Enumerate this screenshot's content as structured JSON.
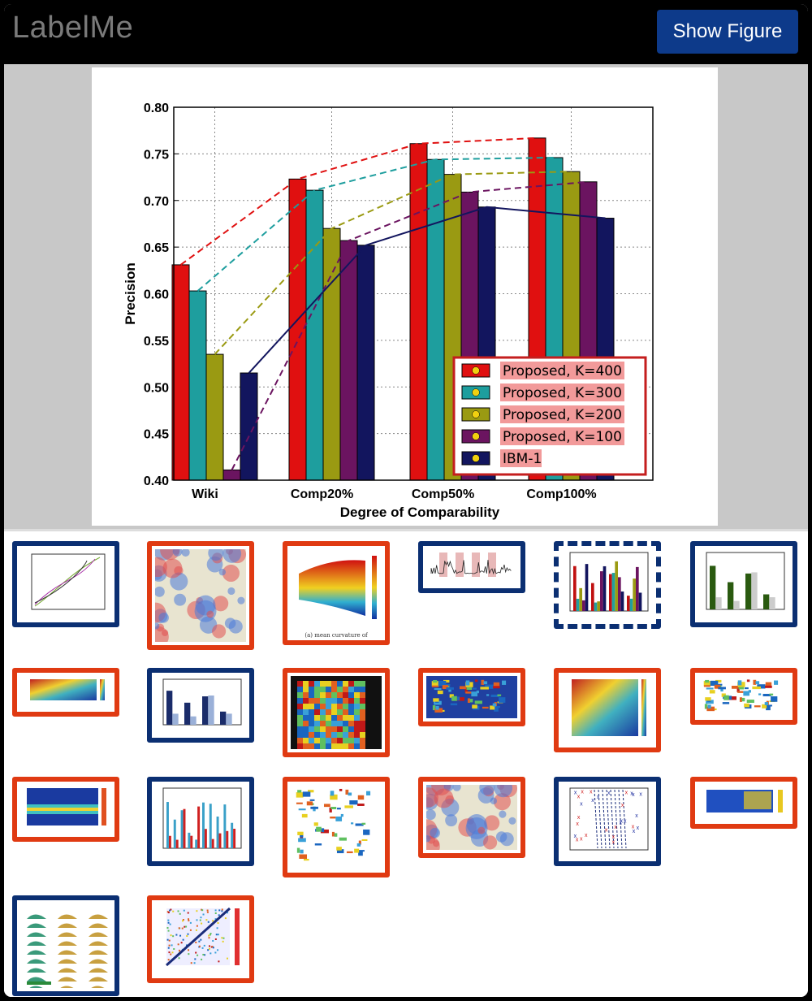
{
  "app": {
    "title": "LabelMe",
    "show_figure_label": "Show Figure"
  },
  "chart_data": {
    "type": "bar",
    "categories": [
      "Wiki",
      "Comp20%",
      "Comp50%",
      "Comp100%"
    ],
    "series": [
      {
        "name": "Proposed, K=400",
        "color": "#e01010",
        "values": [
          0.631,
          0.723,
          0.761,
          0.767
        ]
      },
      {
        "name": "Proposed, K=300",
        "color": "#1e9e9e",
        "values": [
          0.603,
          0.711,
          0.744,
          0.746
        ]
      },
      {
        "name": "Proposed, K=200",
        "color": "#9a9a12",
        "values": [
          0.535,
          0.67,
          0.728,
          0.731
        ]
      },
      {
        "name": "Proposed, K=100",
        "color": "#6b1460",
        "values": [
          0.411,
          0.657,
          0.709,
          0.72
        ]
      },
      {
        "name": "IBM-1",
        "color": "#12155e",
        "values": [
          0.515,
          0.652,
          0.693,
          0.681
        ]
      }
    ],
    "xlabel": "Degree of Comparability",
    "ylabel": "Precision",
    "ylim": [
      0.4,
      0.8
    ],
    "yticks": [
      "0.40",
      "0.45",
      "0.50",
      "0.55",
      "0.60",
      "0.65",
      "0.70",
      "0.75",
      "0.80"
    ],
    "grid": true,
    "legend_position": "lower-right"
  },
  "thumbnails": [
    {
      "label": "thumb-line-profiles",
      "kind": "lines",
      "style": "blue"
    },
    {
      "label": "thumb-antarctic-map",
      "kind": "map",
      "style": "red",
      "caption": ""
    },
    {
      "label": "thumb-mean-curvature-surface",
      "kind": "surface",
      "style": "red",
      "caption": "(a) mean curvature of"
    },
    {
      "label": "thumb-timeseries-bars",
      "kind": "timeseries",
      "style": "blue"
    },
    {
      "label": "thumb-current-figure",
      "kind": "bars",
      "style": "dashed"
    },
    {
      "label": "thumb-error-bars",
      "kind": "errbars",
      "style": "blue"
    },
    {
      "label": "thumb-ocean-section",
      "kind": "section",
      "style": "red"
    },
    {
      "label": "thumb-grouped-bars",
      "kind": "grouped",
      "style": "blue"
    },
    {
      "label": "thumb-heatmap-grid",
      "kind": "heatgrid",
      "style": "red"
    },
    {
      "label": "thumb-world-map",
      "kind": "worldmap",
      "style": "red"
    },
    {
      "label": "thumb-contour",
      "kind": "contour",
      "style": "red"
    },
    {
      "label": "thumb-scatter-map",
      "kind": "scattermap",
      "style": "red"
    },
    {
      "label": "thumb-spectrogram",
      "kind": "spectro",
      "style": "red"
    },
    {
      "label": "thumb-bar-comparison",
      "kind": "barcomp",
      "style": "blue"
    },
    {
      "label": "thumb-europe-map",
      "kind": "europe",
      "style": "red"
    },
    {
      "label": "thumb-regional-map",
      "kind": "regional",
      "style": "red"
    },
    {
      "label": "thumb-scatter-lines",
      "kind": "scatter",
      "style": "blue"
    },
    {
      "label": "thumb-vector-field",
      "kind": "vectors",
      "style": "red"
    },
    {
      "label": "thumb-histogram-grid",
      "kind": "histgrid",
      "style": "blue"
    },
    {
      "label": "thumb-matrix-plot",
      "kind": "matrix",
      "style": "red"
    }
  ]
}
